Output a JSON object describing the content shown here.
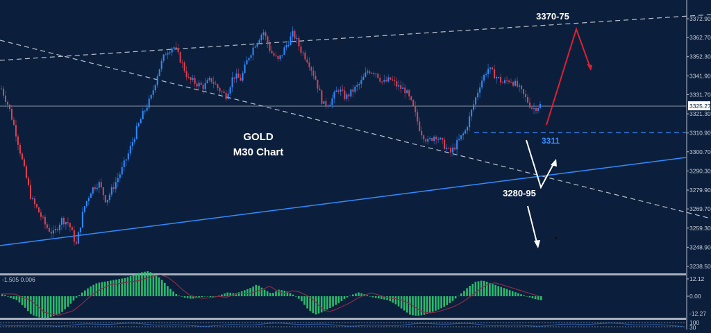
{
  "chart_data": {
    "type": "candlestick",
    "title": "GOLD",
    "subtitle": "M30 Chart",
    "symbol": "GOLD",
    "timeframe": "M30",
    "current_price": "3325.27",
    "y_axis": {
      "ticks": [
        "3372.90",
        "3362.70",
        "3352.30",
        "3341.90",
        "3331.70",
        "3321.30",
        "3310.90",
        "3300.70",
        "3290.30",
        "3279.90",
        "3269.70",
        "3259.30",
        "3248.90",
        "3238.50"
      ],
      "range": [
        3234,
        3378
      ]
    },
    "price_path_approx": [
      3335,
      3325,
      3310,
      3292,
      3275,
      3268,
      3260,
      3256,
      3264,
      3262,
      3250,
      3270,
      3280,
      3284,
      3274,
      3282,
      3290,
      3300,
      3312,
      3322,
      3330,
      3345,
      3355,
      3358,
      3350,
      3340,
      3338,
      3336,
      3340,
      3335,
      3331,
      3342,
      3340,
      3352,
      3360,
      3366,
      3355,
      3350,
      3358,
      3365,
      3356,
      3350,
      3340,
      3326,
      3328,
      3335,
      3330,
      3334,
      3338,
      3345,
      3344,
      3338,
      3340,
      3336,
      3334,
      3325,
      3312,
      3306,
      3310,
      3305,
      3300,
      3306,
      3312,
      3325,
      3338,
      3346,
      3342,
      3338,
      3340,
      3336,
      3330,
      3324,
      3326
    ],
    "annotations": [
      {
        "text": "3370-75",
        "type": "target-zone",
        "color": "#ffffff"
      },
      {
        "text": "3311",
        "type": "support-level",
        "color": "#2f8cff"
      },
      {
        "text": "3280-95",
        "type": "support-zone",
        "color": "#ffffff"
      }
    ],
    "trendlines": [
      {
        "name": "upper-channel",
        "style": "dashed",
        "color": "#b9c2cf",
        "from": [
          0,
          3349
        ],
        "to": [
          1024,
          3376
        ]
      },
      {
        "name": "descending-trendline",
        "style": "dashed",
        "color": "#b9c2cf",
        "from": [
          0,
          3358
        ],
        "to": [
          1024,
          3264
        ]
      },
      {
        "name": "ascending-support",
        "style": "solid",
        "color": "#2f8cff",
        "from": [
          0,
          3254
        ],
        "to": [
          1024,
          3300
        ]
      },
      {
        "name": "support-3311",
        "style": "dashed",
        "color": "#2f8cff",
        "level": 3311
      }
    ],
    "scenario_arrows": [
      {
        "name": "bullish-scenario",
        "color": "#e0202f",
        "path": [
          "3315 -> 3370-75 -> 3345"
        ]
      },
      {
        "name": "bearish-scenario",
        "color": "#ffffff",
        "path": [
          "3311 -> 3285 -> 3300",
          "3275 -> 3245"
        ]
      }
    ],
    "candle_colors": {
      "up": "#2f8cff",
      "down": "#e0404f"
    },
    "indicator": {
      "name": "MACD",
      "values_label": "-1.505 0.006",
      "ticks": [
        "12.12",
        "0.00",
        "-12.27"
      ],
      "histogram_color": "#2ecc71",
      "signal_color": "#8b2b45"
    },
    "sub_indicator": {
      "ticks": [
        "100",
        "30"
      ]
    }
  },
  "labels": {
    "title": "GOLD",
    "subtitle": "M30 Chart",
    "target_zone": "3370-75",
    "support_level": "3311",
    "support_zone": "3280-95",
    "current_price": "3325.27",
    "macd_values": "-1.505 0.006",
    "macd_tick_top": "12.12",
    "macd_tick_mid": "0.00",
    "macd_tick_bot": "-12.27",
    "sub_tick_top": "100",
    "sub_tick_bot": "30"
  },
  "y_ticks": [
    "3372.90",
    "3362.70",
    "3352.30",
    "3341.90",
    "3331.70",
    "3321.30",
    "3310.90",
    "3300.70",
    "3290.30",
    "3279.90",
    "3269.70",
    "3259.30",
    "3248.90",
    "3238.50"
  ],
  "colors": {
    "background": "#0b1f3d",
    "up_candle": "#2f8cff",
    "down_candle": "#e0404f",
    "trend_blue": "#2f8cff",
    "dashed_grey": "#b9c2cf",
    "arrow_red": "#e0202f",
    "arrow_white": "#ffffff",
    "macd_green": "#2ecc71",
    "macd_signal": "#8b2b45"
  }
}
